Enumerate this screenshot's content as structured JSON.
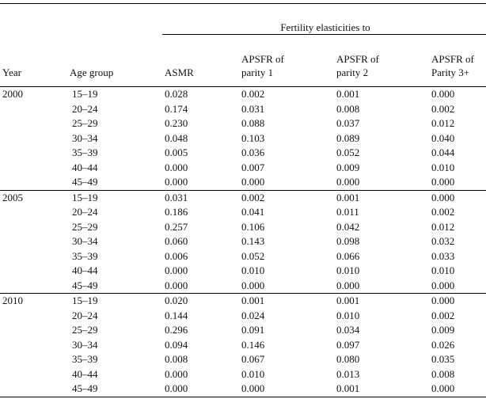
{
  "header": {
    "spanner": "Fertility elasticities to",
    "columns": [
      "Year",
      "Age group",
      "ASMR",
      "APSFR of parity 1",
      "APSFR of parity 2",
      "APSFR of Parity 3+"
    ]
  },
  "groups": [
    {
      "year": "2000",
      "rows": [
        [
          "15–19",
          "0.028",
          "0.002",
          "0.001",
          "0.000"
        ],
        [
          "20–24",
          "0.174",
          "0.031",
          "0.008",
          "0.002"
        ],
        [
          "25–29",
          "0.230",
          "0.088",
          "0.037",
          "0.012"
        ],
        [
          "30–34",
          "0.048",
          "0.103",
          "0.089",
          "0.040"
        ],
        [
          "35–39",
          "0.005",
          "0.036",
          "0.052",
          "0.044"
        ],
        [
          "40–44",
          "0.000",
          "0.007",
          "0.009",
          "0.010"
        ],
        [
          "45–49",
          "0.000",
          "0.000",
          "0.000",
          "0.000"
        ]
      ]
    },
    {
      "year": "2005",
      "rows": [
        [
          "15–19",
          "0.031",
          "0.002",
          "0.001",
          "0.000"
        ],
        [
          "20–24",
          "0.186",
          "0.041",
          "0.011",
          "0.002"
        ],
        [
          "25–29",
          "0.257",
          "0.106",
          "0.042",
          "0.012"
        ],
        [
          "30–34",
          "0.060",
          "0.143",
          "0.098",
          "0.032"
        ],
        [
          "35–39",
          "0.006",
          "0.052",
          "0.066",
          "0.033"
        ],
        [
          "40–44",
          "0.000",
          "0.010",
          "0.010",
          "0.010"
        ],
        [
          "45–49",
          "0.000",
          "0.000",
          "0.000",
          "0.000"
        ]
      ]
    },
    {
      "year": "2010",
      "rows": [
        [
          "15–19",
          "0.020",
          "0.001",
          "0.001",
          "0.000"
        ],
        [
          "20–24",
          "0.144",
          "0.024",
          "0.010",
          "0.002"
        ],
        [
          "25–29",
          "0.296",
          "0.091",
          "0.034",
          "0.009"
        ],
        [
          "30–34",
          "0.094",
          "0.146",
          "0.097",
          "0.026"
        ],
        [
          "35–39",
          "0.008",
          "0.067",
          "0.080",
          "0.035"
        ],
        [
          "40–44",
          "0.000",
          "0.010",
          "0.013",
          "0.008"
        ],
        [
          "45–49",
          "0.000",
          "0.000",
          "0.001",
          "0.000"
        ]
      ]
    }
  ]
}
